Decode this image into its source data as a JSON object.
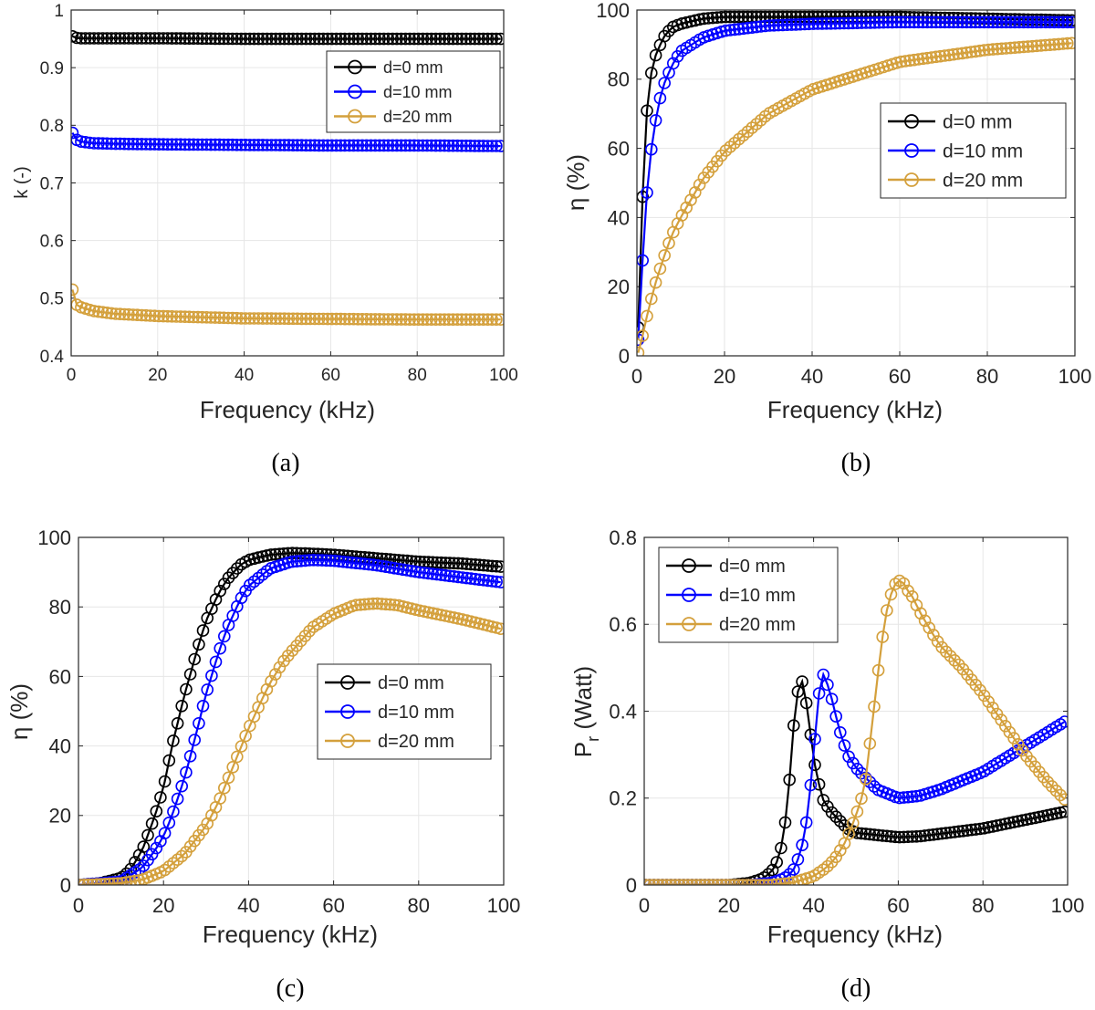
{
  "figure": {
    "captions": [
      "(a)",
      "(b)",
      "(c)",
      "(d)"
    ],
    "colors": {
      "d0": "#000000",
      "d10": "#0000ff",
      "d20": "#d4a03c",
      "grid": "#e6e6e6",
      "axis": "#262626"
    }
  },
  "chart_data": [
    {
      "type": "line",
      "panel": "a",
      "title": "",
      "xlabel": "Frequency (kHz)",
      "ylabel": "k (-)",
      "xlim": [
        0,
        100
      ],
      "ylim": [
        0.4,
        1.0
      ],
      "xticks": [
        "0",
        "20",
        "40",
        "60",
        "80",
        "100"
      ],
      "yticks": [
        "0.4",
        "0.5",
        "0.6",
        "0.7",
        "0.8",
        "0.9",
        "1"
      ],
      "grid": true,
      "legend": "top-right",
      "series": [
        {
          "name": "d=0 mm",
          "x": [
            0.1,
            1,
            2,
            5,
            10,
            20,
            40,
            60,
            80,
            100
          ],
          "y": [
            0.955,
            0.952,
            0.951,
            0.951,
            0.951,
            0.951,
            0.95,
            0.95,
            0.95,
            0.95
          ]
        },
        {
          "name": "d=10 mm",
          "x": [
            0.1,
            1,
            2,
            5,
            10,
            20,
            40,
            60,
            80,
            100
          ],
          "y": [
            0.79,
            0.776,
            0.772,
            0.769,
            0.768,
            0.767,
            0.766,
            0.765,
            0.765,
            0.764
          ]
        },
        {
          "name": "d=20 mm",
          "x": [
            0.1,
            0.5,
            1,
            2,
            5,
            10,
            20,
            40,
            60,
            80,
            100
          ],
          "y": [
            0.533,
            0.497,
            0.49,
            0.485,
            0.478,
            0.473,
            0.469,
            0.465,
            0.464,
            0.463,
            0.463
          ]
        }
      ]
    },
    {
      "type": "line",
      "panel": "b",
      "title": "",
      "xlabel": "Frequency (kHz)",
      "ylabel": "η (%)",
      "xlim": [
        0,
        100
      ],
      "ylim": [
        0,
        100
      ],
      "xticks": [
        "0",
        "20",
        "40",
        "60",
        "80",
        "100"
      ],
      "yticks": [
        "0",
        "20",
        "40",
        "60",
        "80",
        "100"
      ],
      "grid": true,
      "legend": "middle-right",
      "series": [
        {
          "name": "d=0 mm",
          "x": [
            0.1,
            1,
            2,
            3,
            4,
            6,
            8,
            10,
            15,
            20,
            40,
            60,
            80,
            100
          ],
          "y": [
            0,
            37,
            67,
            80,
            86,
            92,
            95,
            96,
            97.5,
            98,
            98,
            98,
            97.5,
            97
          ]
        },
        {
          "name": "d=10 mm",
          "x": [
            0.1,
            1,
            2,
            3,
            4,
            5,
            6,
            8,
            10,
            15,
            20,
            30,
            40,
            60,
            80,
            100
          ],
          "y": [
            0,
            21,
            43,
            57,
            66,
            73,
            78,
            84,
            88,
            92,
            94,
            95.5,
            96,
            96.5,
            96.5,
            96.5
          ]
        },
        {
          "name": "d=20 mm",
          "x": [
            0.1,
            1,
            2,
            3,
            4,
            5,
            6,
            8,
            10,
            15,
            20,
            30,
            40,
            50,
            60,
            80,
            100
          ],
          "y": [
            0,
            4,
            10,
            15,
            20,
            24,
            28,
            35,
            40,
            51,
            59,
            70,
            77,
            81,
            85,
            88.5,
            90.5
          ]
        }
      ]
    },
    {
      "type": "line",
      "panel": "c",
      "title": "",
      "xlabel": "Frequency (kHz)",
      "ylabel": "η (%)",
      "xlim": [
        0,
        100
      ],
      "ylim": [
        0,
        100
      ],
      "xticks": [
        "0",
        "20",
        "40",
        "60",
        "80",
        "100"
      ],
      "yticks": [
        "0",
        "20",
        "40",
        "60",
        "80",
        "100"
      ],
      "grid": true,
      "legend": "middle-right",
      "series": [
        {
          "name": "d=0 mm",
          "x": [
            0,
            5,
            10,
            12,
            15,
            18,
            20,
            22,
            25,
            28,
            30,
            33,
            35,
            38,
            40,
            45,
            50,
            55,
            60,
            70,
            80,
            90,
            100
          ],
          "y": [
            0,
            0.5,
            2,
            4,
            10,
            20,
            28,
            40,
            55,
            68,
            76,
            84,
            88,
            92,
            93.5,
            95,
            95.5,
            95.3,
            95,
            94,
            93,
            92.5,
            91.5
          ]
        },
        {
          "name": "d=10 mm",
          "x": [
            0,
            10,
            15,
            18,
            20,
            22,
            25,
            28,
            30,
            33,
            35,
            38,
            40,
            45,
            50,
            55,
            60,
            70,
            80,
            90,
            100
          ],
          "y": [
            0,
            1,
            5,
            10,
            14,
            20,
            31,
            45,
            55,
            67,
            74,
            82,
            86,
            91,
            93,
            93.5,
            93.3,
            92,
            90,
            88.5,
            87
          ]
        },
        {
          "name": "d=20 mm",
          "x": [
            0,
            10,
            15,
            20,
            25,
            30,
            33,
            35,
            38,
            40,
            43,
            45,
            48,
            50,
            55,
            60,
            65,
            70,
            75,
            80,
            90,
            100
          ],
          "y": [
            0,
            0.5,
            1.5,
            4,
            9,
            17,
            24,
            30,
            39,
            45,
            53,
            58,
            64,
            67,
            74,
            78,
            80.5,
            81,
            80.5,
            79,
            76.5,
            73.5
          ]
        }
      ]
    },
    {
      "type": "line",
      "panel": "d",
      "title": "",
      "xlabel": "Frequency (kHz)",
      "ylabel": "P_r (Watt)",
      "ylabel_main": "P",
      "ylabel_sub": "r",
      "ylabel_rest": " (Watt)",
      "xlim": [
        0,
        100
      ],
      "ylim": [
        0,
        0.8
      ],
      "xticks": [
        "0",
        "20",
        "40",
        "60",
        "80",
        "100"
      ],
      "yticks": [
        "0",
        "0.2",
        "0.4",
        "0.6",
        "0.8"
      ],
      "grid": true,
      "legend": "top-left",
      "series": [
        {
          "name": "d=0 mm",
          "x": [
            0,
            20,
            25,
            28,
            30,
            31,
            32,
            33,
            34,
            35,
            36,
            37,
            38,
            39,
            40,
            42,
            44,
            46,
            48,
            50,
            55,
            60,
            65,
            70,
            80,
            90,
            100
          ],
          "y": [
            0,
            0,
            0.005,
            0.015,
            0.03,
            0.045,
            0.07,
            0.12,
            0.2,
            0.34,
            0.43,
            0.48,
            0.44,
            0.37,
            0.29,
            0.2,
            0.17,
            0.15,
            0.13,
            0.12,
            0.115,
            0.11,
            0.112,
            0.118,
            0.13,
            0.15,
            0.17
          ]
        },
        {
          "name": "d=10 mm",
          "x": [
            0,
            25,
            30,
            33,
            35,
            36,
            37,
            38,
            39,
            40,
            41,
            42,
            43,
            44,
            45,
            46,
            48,
            50,
            55,
            60,
            65,
            70,
            80,
            90,
            100
          ],
          "y": [
            0,
            0,
            0.005,
            0.015,
            0.03,
            0.05,
            0.08,
            0.12,
            0.2,
            0.3,
            0.42,
            0.49,
            0.47,
            0.44,
            0.4,
            0.36,
            0.3,
            0.27,
            0.22,
            0.2,
            0.205,
            0.22,
            0.26,
            0.32,
            0.38
          ]
        },
        {
          "name": "d=20 mm",
          "x": [
            0,
            30,
            35,
            40,
            43,
            45,
            47,
            48,
            50,
            52,
            53,
            55,
            56,
            57,
            58,
            59,
            60,
            61,
            62,
            63,
            65,
            68,
            70,
            75,
            80,
            85,
            90,
            95,
            100
          ],
          "y": [
            0,
            0,
            0.005,
            0.02,
            0.04,
            0.06,
            0.09,
            0.11,
            0.16,
            0.22,
            0.3,
            0.47,
            0.55,
            0.62,
            0.66,
            0.69,
            0.7,
            0.7,
            0.68,
            0.67,
            0.63,
            0.58,
            0.55,
            0.5,
            0.44,
            0.37,
            0.3,
            0.24,
            0.19
          ]
        }
      ]
    }
  ]
}
